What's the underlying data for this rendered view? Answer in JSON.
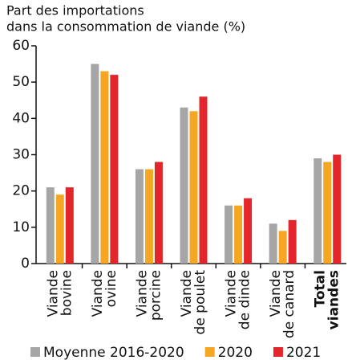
{
  "chart_data": {
    "type": "bar",
    "title": [
      "Part des importations",
      "dans la consommation de viande (%)"
    ],
    "categories": [
      [
        "Viande",
        "bovine"
      ],
      [
        "Viande",
        "ovine"
      ],
      [
        "Viande",
        "porcine"
      ],
      [
        "Viande",
        "de poulet"
      ],
      [
        "Viande",
        "de dinde"
      ],
      [
        "Viande",
        "de canard"
      ],
      [
        "Total",
        "viandes"
      ]
    ],
    "series": [
      {
        "name": "Moyenne 2016-2020",
        "color": "#a6a6a6",
        "values": [
          21,
          55,
          26,
          43,
          16,
          11,
          29
        ]
      },
      {
        "name": "2020",
        "color": "#f5a623",
        "values": [
          19,
          53,
          26,
          42,
          16,
          9,
          28
        ]
      },
      {
        "name": "2021",
        "color": "#e3262b",
        "values": [
          21,
          52,
          28,
          46,
          18,
          12,
          30
        ]
      }
    ],
    "ylim": [
      0,
      60
    ],
    "yticks": [
      0,
      10,
      20,
      30,
      40,
      50,
      60
    ]
  }
}
